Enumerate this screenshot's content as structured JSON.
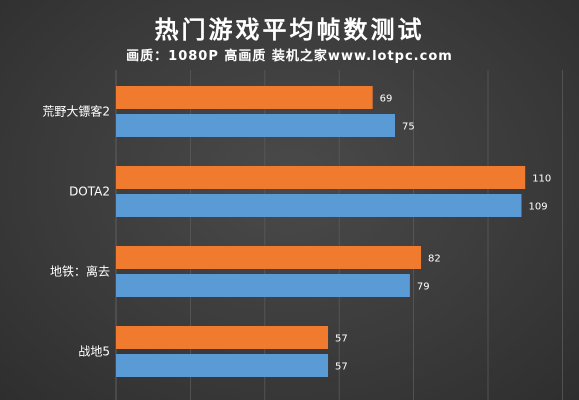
{
  "title": "热门游戏平均帧数测试",
  "subtitle": "画质：1080P 高画质 装机之家www.lotpc.com",
  "colors": {
    "background": "#3d3d3d",
    "grid": "#5a5a5a",
    "series_1": "#f07a2e",
    "series_2": "#5b9bd5"
  },
  "chart_data": {
    "type": "bar",
    "orientation": "horizontal",
    "categories": [
      "荒野大镖客2",
      "DOTA2",
      "地铁：离去",
      "战地5"
    ],
    "series": [
      {
        "values": [
          69,
          110,
          82,
          57
        ]
      },
      {
        "values": [
          75,
          109,
          79,
          57
        ]
      }
    ],
    "xlim": [
      0,
      120
    ],
    "grid": true,
    "data_labels": true
  }
}
